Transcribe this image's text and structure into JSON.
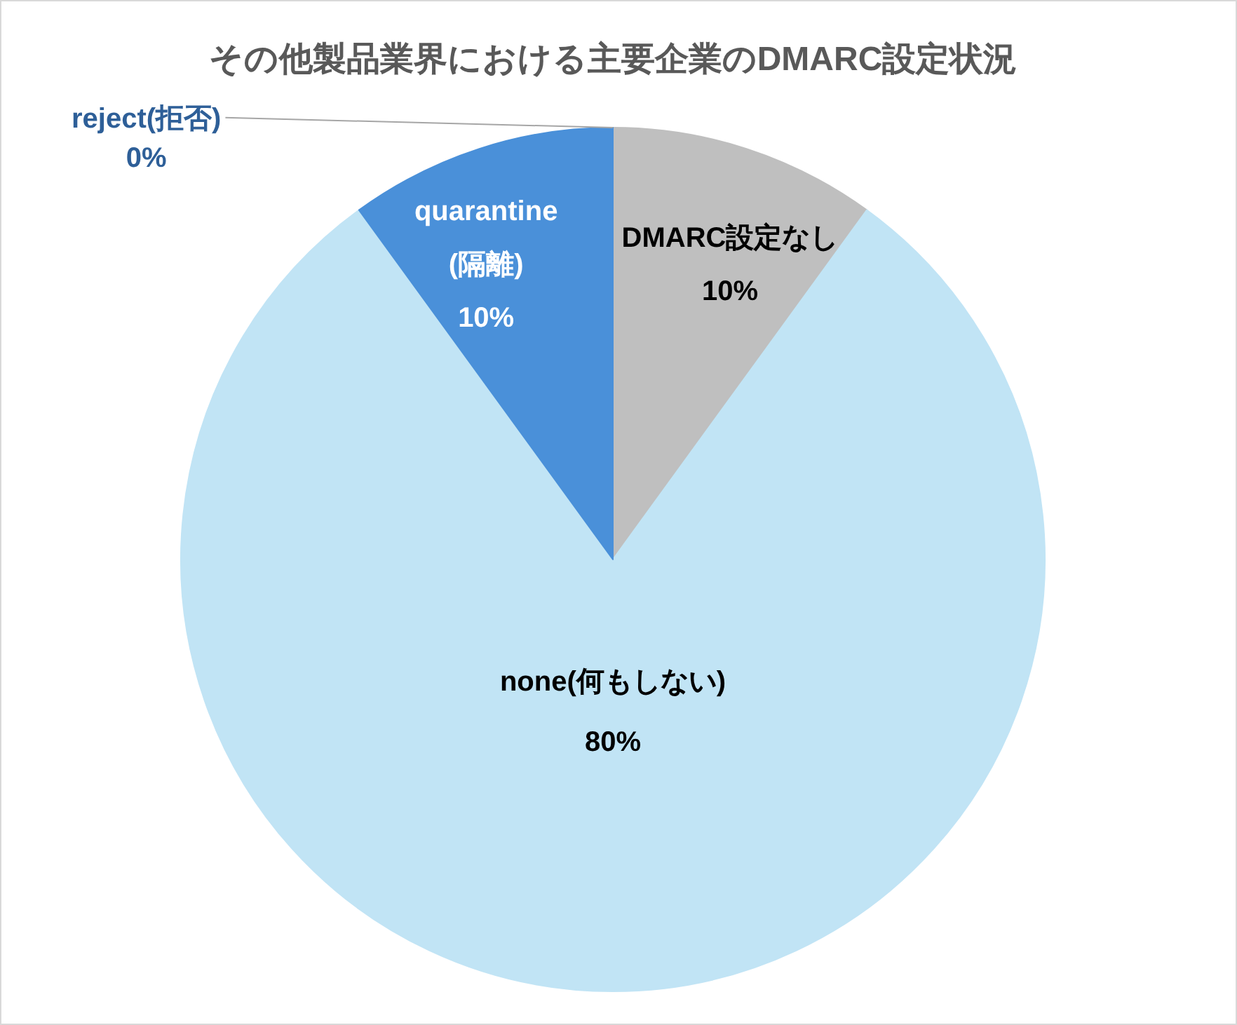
{
  "chart_data": {
    "type": "pie",
    "title": "その他製品業界における主要企業のDMARC設定状況",
    "categories": [
      "DMARC設定なし",
      "none(何もしない)",
      "quarantine(隔離)",
      "reject(拒否)"
    ],
    "values": [
      10,
      80,
      10,
      0
    ],
    "colors": [
      "#bfbfbf",
      "#c1e4f5",
      "#4a90d9",
      "#2e5f98"
    ],
    "value_labels": [
      "10%",
      "80%",
      "10%",
      "0%"
    ]
  }
}
